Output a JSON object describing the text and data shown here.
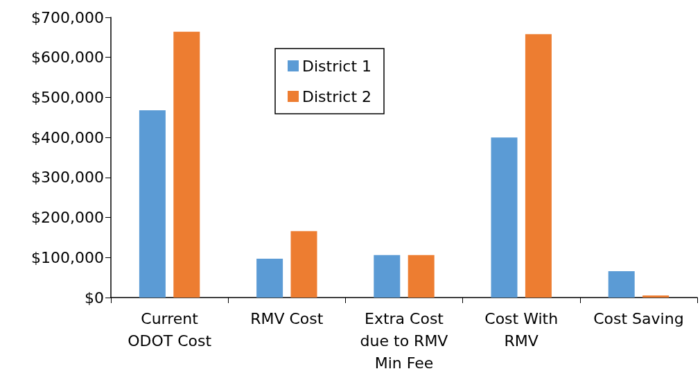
{
  "chart_data": {
    "type": "bar",
    "categories": [
      "Current\nODOT Cost",
      "RMV Cost",
      "Extra Cost\ndue to RMV\nMin Fee",
      "Cost With\nRMV",
      "Cost Saving"
    ],
    "series": [
      {
        "name": "District 1",
        "color": "#5b9bd5",
        "values": [
          468000,
          97000,
          106000,
          400000,
          66000
        ]
      },
      {
        "name": "District 2",
        "color": "#ed7d31",
        "values": [
          664000,
          166000,
          106000,
          658000,
          5000
        ]
      }
    ],
    "ylim": [
      0,
      700000
    ],
    "yticks": [
      {
        "value": 0,
        "label": "$0"
      },
      {
        "value": 100000,
        "label": "$100,000"
      },
      {
        "value": 200000,
        "label": "$200,000"
      },
      {
        "value": 300000,
        "label": "$300,000"
      },
      {
        "value": 400000,
        "label": "$400,000"
      },
      {
        "value": 500000,
        "label": "$500,000"
      },
      {
        "value": 600000,
        "label": "$600,000"
      },
      {
        "value": 700000,
        "label": "$700,000"
      }
    ],
    "grid": false,
    "legend": "top"
  }
}
